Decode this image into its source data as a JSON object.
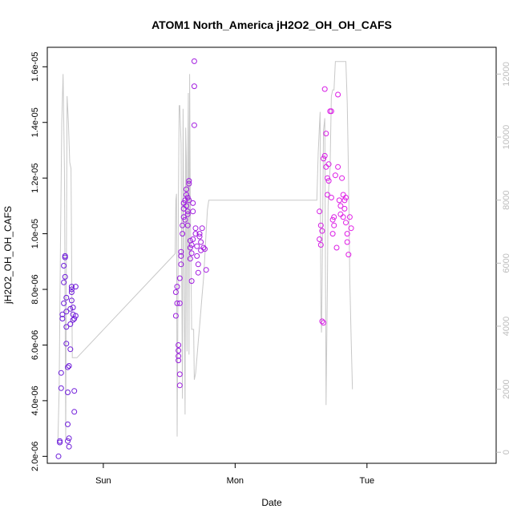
{
  "chart_data": {
    "type": "scatter",
    "title": "ATOM1 North_America jH2O2_OH_OH_CAFS",
    "xlabel": "Date",
    "ylabel": "jH2O2_OH_OH_CAFS",
    "x_ticks": [
      "Sun",
      "Mon",
      "Tue"
    ],
    "y_ticks": [
      "2.0e-06",
      "4.0e-06",
      "6.0e-06",
      "8.0e-06",
      "1.0e-05",
      "1.2e-05",
      "1.4e-05",
      "1.6e-05"
    ],
    "y_tick_values": [
      2e-06,
      4e-06,
      6e-06,
      8e-06,
      1e-05,
      1.2e-05,
      1.4e-05,
      1.6e-05
    ],
    "y2_ticks": [
      "0",
      "2000",
      "4000",
      "6000",
      "8000",
      "10000",
      "12000"
    ],
    "y2_tick_values": [
      0,
      2000,
      4000,
      6000,
      8000,
      10000,
      12000
    ],
    "ylim": [
      1.75e-06,
      1.67e-05
    ],
    "y2lim": [
      -350,
      12850
    ],
    "xlim_days": [
      -0.425,
      2.98
    ],
    "grid": false,
    "colors": {
      "start": "#6a1bd9",
      "end": "#e21ee6",
      "altitude_line": "#c8c8c8",
      "right_axis": "#bdbdbd"
    },
    "series": [
      {
        "x": [
          -0.34,
          -0.33,
          -0.33,
          -0.32,
          -0.32,
          -0.31,
          -0.31,
          -0.3,
          -0.3,
          -0.3,
          -0.29,
          -0.29,
          -0.29,
          -0.28,
          -0.28,
          -0.28,
          -0.28,
          -0.27,
          -0.27,
          -0.27,
          -0.27,
          -0.26,
          -0.26,
          -0.26,
          -0.25,
          -0.25,
          -0.25,
          -0.24,
          -0.24,
          -0.24,
          -0.24,
          -0.23,
          -0.23,
          -0.23,
          -0.22,
          -0.22,
          -0.22,
          -0.21,
          -0.21
        ],
        "values": [
          2e-06,
          2.55e-06,
          2.5e-06,
          4.45e-06,
          5e-06,
          6.95e-06,
          7.1e-06,
          7.5e-06,
          8.25e-06,
          8.85e-06,
          9.15e-06,
          9.2e-06,
          8.45e-06,
          7.7e-06,
          7.2e-06,
          6.65e-06,
          6.05e-06,
          5.2e-06,
          4.3e-06,
          3.15e-06,
          2.55e-06,
          2.35e-06,
          2.65e-06,
          5.25e-06,
          5.85e-06,
          6.75e-06,
          7.3e-06,
          7.9e-06,
          8.1e-06,
          8e-06,
          7.6e-06,
          7.35e-06,
          7.1e-06,
          6.9e-06,
          6.95e-06,
          4.35e-06,
          3.6e-06,
          8.1e-06,
          7.05e-06
        ]
      },
      {
        "x": [
          0.55,
          0.55,
          0.56,
          0.56,
          0.57,
          0.57,
          0.57,
          0.57,
          0.58,
          0.58,
          0.58,
          0.58,
          0.59,
          0.59,
          0.59,
          0.6,
          0.6,
          0.61,
          0.61,
          0.61,
          0.62,
          0.62,
          0.63,
          0.63,
          0.63,
          0.64,
          0.64,
          0.64,
          0.64,
          0.65,
          0.65,
          0.65,
          0.66,
          0.66,
          0.66,
          0.67,
          0.67,
          0.67,
          0.68,
          0.68,
          0.68,
          0.69,
          0.69,
          0.69,
          0.7,
          0.7,
          0.71,
          0.71,
          0.72,
          0.72,
          0.73,
          0.73,
          0.74,
          0.74,
          0.75,
          0.76,
          0.77,
          0.78
        ],
        "values": [
          7.05e-06,
          7.9e-06,
          8.1e-06,
          7.5e-06,
          5.8e-06,
          6e-06,
          5.45e-06,
          5.6e-06,
          4.55e-06,
          4.95e-06,
          7.5e-06,
          8.4e-06,
          9.2e-06,
          9.35e-06,
          8.9e-06,
          1e-05,
          1.03e-05,
          1.06e-05,
          1.11e-05,
          1.09e-05,
          1.05e-05,
          1.12e-05,
          1.14e-05,
          1.16e-05,
          1.1e-05,
          1.03e-05,
          1.13e-05,
          1.08e-05,
          1.07e-05,
          1.19e-05,
          1.18e-05,
          1.12e-05,
          9.75e-06,
          9.5e-06,
          9.1e-06,
          8.3e-06,
          9.3e-06,
          9.6e-06,
          1.11e-05,
          1.08e-05,
          9.8e-06,
          1.39e-05,
          1.53e-05,
          1.62e-05,
          1e-05,
          1.02e-05,
          9.55e-06,
          9.2e-06,
          8.9e-06,
          8.6e-06,
          9.9e-06,
          1e-05,
          9.4e-06,
          9.7e-06,
          1.02e-05,
          9.5e-06,
          9.45e-06,
          8.7e-06
        ]
      },
      {
        "x": [
          1.64,
          1.64,
          1.65,
          1.65,
          1.66,
          1.66,
          1.67,
          1.67,
          1.68,
          1.68,
          1.69,
          1.69,
          1.7,
          1.7,
          1.71,
          1.71,
          1.72,
          1.73,
          1.73,
          1.74,
          1.74,
          1.75,
          1.75,
          1.76,
          1.77,
          1.78,
          1.78,
          1.79,
          1.8,
          1.8,
          1.81,
          1.82,
          1.82,
          1.83,
          1.83,
          1.84,
          1.84,
          1.85,
          1.85,
          1.86,
          1.87,
          1.88
        ],
        "values": [
          1.08e-05,
          9.8e-06,
          1.03e-05,
          9.6e-06,
          1.01e-05,
          6.85e-06,
          6.8e-06,
          1.27e-05,
          1.28e-05,
          1.52e-05,
          1.36e-05,
          1.24e-05,
          1.2e-05,
          1.14e-05,
          1.19e-05,
          1.25e-05,
          1.44e-05,
          1.44e-05,
          1.13e-05,
          1.05e-05,
          1e-05,
          1.06e-05,
          1.03e-05,
          1.21e-05,
          9.5e-06,
          1.24e-05,
          1.5e-05,
          1.12e-05,
          1.07e-05,
          1.1e-05,
          1.2e-05,
          1.06e-05,
          1.14e-05,
          1.09e-05,
          1.12e-05,
          1.13e-05,
          1.04e-05,
          1e-05,
          9.7e-06,
          9.25e-06,
          1.06e-05,
          1.02e-05
        ]
      }
    ],
    "altitude": {
      "x": [
        -0.345,
        -0.335,
        -0.325,
        -0.315,
        -0.305,
        -0.295,
        -0.285,
        -0.28,
        -0.275,
        -0.265,
        -0.255,
        -0.245,
        -0.235,
        -0.225,
        -0.215,
        -0.21,
        -0.2,
        0.545,
        0.55,
        0.555,
        0.56,
        0.565,
        0.57,
        0.575,
        0.58,
        0.59,
        0.6,
        0.605,
        0.61,
        0.62,
        0.625,
        0.63,
        0.635,
        0.64,
        0.645,
        0.65,
        0.655,
        0.66,
        0.67,
        0.675,
        0.68,
        0.685,
        0.69,
        0.7,
        0.71,
        0.72,
        0.73,
        0.74,
        0.75,
        0.76,
        0.77,
        0.78,
        0.79,
        0.8,
        1.62,
        1.63,
        1.64,
        1.645,
        1.65,
        1.655,
        1.66,
        1.67,
        1.68,
        1.69,
        1.7,
        1.705,
        1.71,
        1.72,
        1.73,
        1.74,
        1.75,
        1.76,
        1.77,
        1.78,
        1.79,
        1.8,
        1.81,
        1.82,
        1.83,
        1.84,
        1.85,
        1.86,
        1.87,
        1.88,
        1.89
      ],
      "values": [
        300,
        2000,
        6500,
        10500,
        12000,
        9000,
        400,
        6000,
        11300,
        10500,
        9200,
        9000,
        3000,
        3000,
        3000,
        3000,
        3000,
        6300,
        8000,
        8200,
        500,
        3800,
        8100,
        11000,
        11000,
        9800,
        1700,
        10900,
        7300,
        1200,
        10300,
        9300,
        3200,
        9100,
        11400,
        3100,
        12000,
        8000,
        3900,
        3900,
        3900,
        3900,
        2300,
        2500,
        3000,
        3500,
        4000,
        4500,
        5000,
        5500,
        6200,
        7000,
        7700,
        8000,
        8000,
        9500,
        10400,
        10800,
        4500,
        3800,
        5500,
        10200,
        10600,
        1500,
        5400,
        7800,
        8400,
        9000,
        11300,
        11500,
        11500,
        12400,
        12400,
        12400,
        12400,
        12400,
        12400,
        12400,
        12400,
        12400,
        11100,
        8800,
        5500,
        3600,
        2000
      ]
    }
  }
}
